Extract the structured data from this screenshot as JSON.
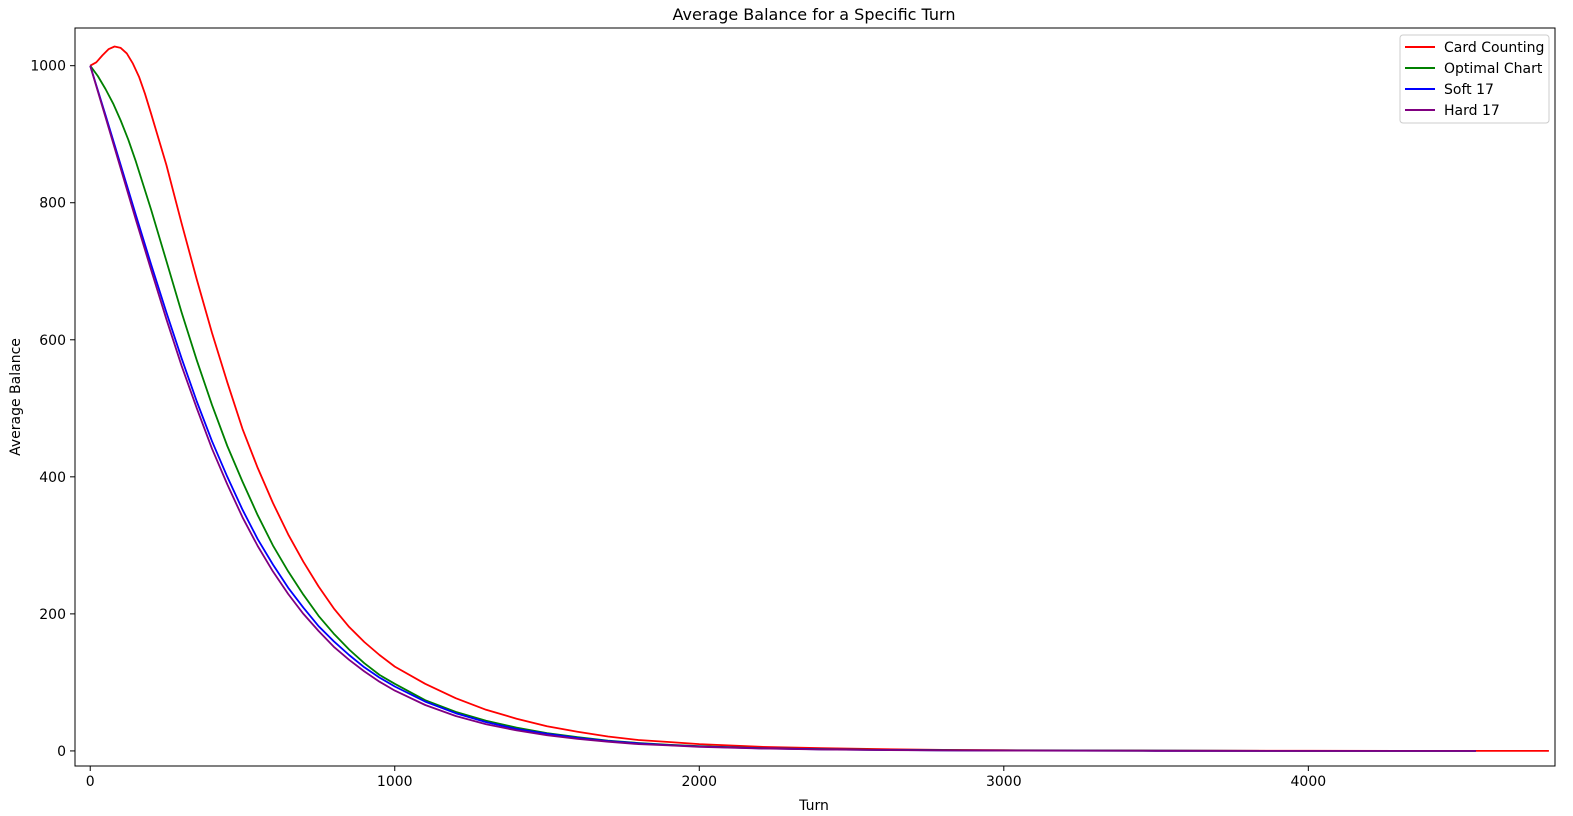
{
  "chart_data": {
    "type": "line",
    "title": "Average Balance for a Specific Turn",
    "xlabel": "Turn",
    "ylabel": "Average Balance",
    "xlim": [
      -50,
      4810
    ],
    "ylim": [
      -22,
      1055
    ],
    "xticks": [
      0,
      1000,
      2000,
      3000,
      4000
    ],
    "yticks": [
      0,
      200,
      400,
      600,
      800,
      1000
    ],
    "grid": false,
    "legend_position": "top-right",
    "series": [
      {
        "name": "Card Counting",
        "color": "#ff0000",
        "points": [
          [
            0,
            1000
          ],
          [
            20,
            1005
          ],
          [
            40,
            1015
          ],
          [
            60,
            1024
          ],
          [
            80,
            1028
          ],
          [
            100,
            1026
          ],
          [
            120,
            1018
          ],
          [
            140,
            1003
          ],
          [
            160,
            984
          ],
          [
            180,
            959
          ],
          [
            200,
            930
          ],
          [
            250,
            855
          ],
          [
            300,
            770
          ],
          [
            350,
            688
          ],
          [
            400,
            610
          ],
          [
            450,
            538
          ],
          [
            500,
            470
          ],
          [
            550,
            413
          ],
          [
            600,
            362
          ],
          [
            650,
            316
          ],
          [
            700,
            276
          ],
          [
            750,
            240
          ],
          [
            800,
            208
          ],
          [
            850,
            181
          ],
          [
            900,
            159
          ],
          [
            950,
            140
          ],
          [
            1000,
            123
          ],
          [
            1100,
            98
          ],
          [
            1200,
            77
          ],
          [
            1300,
            60
          ],
          [
            1400,
            47
          ],
          [
            1500,
            36
          ],
          [
            1600,
            28
          ],
          [
            1700,
            21
          ],
          [
            1800,
            16
          ],
          [
            1900,
            13
          ],
          [
            2000,
            10
          ],
          [
            2200,
            6
          ],
          [
            2400,
            4
          ],
          [
            2600,
            2.5
          ],
          [
            2800,
            1.5
          ],
          [
            3000,
            1
          ],
          [
            3500,
            0.5
          ],
          [
            4000,
            0.2
          ],
          [
            4500,
            0.1
          ],
          [
            4790,
            0
          ]
        ]
      },
      {
        "name": "Optimal Chart",
        "color": "#008000",
        "points": [
          [
            0,
            1000
          ],
          [
            25,
            985
          ],
          [
            50,
            966
          ],
          [
            75,
            945
          ],
          [
            100,
            920
          ],
          [
            125,
            892
          ],
          [
            150,
            860
          ],
          [
            175,
            825
          ],
          [
            200,
            790
          ],
          [
            250,
            715
          ],
          [
            300,
            640
          ],
          [
            350,
            570
          ],
          [
            400,
            505
          ],
          [
            450,
            445
          ],
          [
            500,
            393
          ],
          [
            550,
            344
          ],
          [
            600,
            300
          ],
          [
            650,
            262
          ],
          [
            700,
            228
          ],
          [
            750,
            197
          ],
          [
            800,
            171
          ],
          [
            850,
            148
          ],
          [
            900,
            128
          ],
          [
            950,
            111
          ],
          [
            1000,
            98
          ],
          [
            1100,
            74
          ],
          [
            1200,
            57
          ],
          [
            1300,
            44
          ],
          [
            1400,
            34
          ],
          [
            1500,
            26
          ],
          [
            1600,
            20
          ],
          [
            1700,
            15
          ],
          [
            1800,
            11.5
          ],
          [
            1900,
            9
          ],
          [
            2000,
            7
          ],
          [
            2200,
            4
          ],
          [
            2400,
            2.5
          ],
          [
            2600,
            1.5
          ],
          [
            2800,
            1
          ],
          [
            3000,
            0.6
          ],
          [
            3500,
            0.3
          ],
          [
            4000,
            0.1
          ],
          [
            4550,
            0
          ]
        ]
      },
      {
        "name": "Soft 17",
        "color": "#0000ff",
        "points": [
          [
            0,
            1000
          ],
          [
            50,
            928
          ],
          [
            100,
            855
          ],
          [
            150,
            782
          ],
          [
            200,
            710
          ],
          [
            250,
            640
          ],
          [
            300,
            573
          ],
          [
            350,
            510
          ],
          [
            400,
            452
          ],
          [
            450,
            400
          ],
          [
            500,
            352
          ],
          [
            550,
            309
          ],
          [
            600,
            272
          ],
          [
            650,
            238
          ],
          [
            700,
            209
          ],
          [
            750,
            182
          ],
          [
            800,
            160
          ],
          [
            850,
            140
          ],
          [
            900,
            122
          ],
          [
            950,
            107
          ],
          [
            1000,
            94
          ],
          [
            1100,
            72
          ],
          [
            1200,
            55
          ],
          [
            1300,
            42
          ],
          [
            1400,
            32
          ],
          [
            1500,
            25
          ],
          [
            1600,
            19
          ],
          [
            1700,
            14.5
          ],
          [
            1800,
            11
          ],
          [
            1900,
            8.5
          ],
          [
            2000,
            6.5
          ],
          [
            2200,
            3.8
          ],
          [
            2400,
            2.3
          ],
          [
            2600,
            1.4
          ],
          [
            2800,
            0.9
          ],
          [
            3000,
            0.5
          ],
          [
            3500,
            0.2
          ],
          [
            4000,
            0.1
          ],
          [
            4550,
            0
          ]
        ]
      },
      {
        "name": "Hard 17",
        "color": "#800080",
        "points": [
          [
            0,
            1000
          ],
          [
            50,
            925
          ],
          [
            100,
            850
          ],
          [
            150,
            775
          ],
          [
            200,
            702
          ],
          [
            250,
            630
          ],
          [
            300,
            562
          ],
          [
            350,
            500
          ],
          [
            400,
            441
          ],
          [
            450,
            389
          ],
          [
            500,
            341
          ],
          [
            550,
            299
          ],
          [
            600,
            262
          ],
          [
            650,
            229
          ],
          [
            700,
            200
          ],
          [
            750,
            175
          ],
          [
            800,
            152
          ],
          [
            850,
            133
          ],
          [
            900,
            116
          ],
          [
            950,
            101
          ],
          [
            1000,
            88
          ],
          [
            1100,
            67
          ],
          [
            1200,
            51
          ],
          [
            1300,
            39
          ],
          [
            1400,
            30
          ],
          [
            1500,
            23
          ],
          [
            1600,
            17.5
          ],
          [
            1700,
            13.5
          ],
          [
            1800,
            10
          ],
          [
            1900,
            8
          ],
          [
            2000,
            6
          ],
          [
            2200,
            3.5
          ],
          [
            2400,
            2.1
          ],
          [
            2600,
            1.3
          ],
          [
            2800,
            0.8
          ],
          [
            3000,
            0.5
          ],
          [
            3500,
            0.2
          ],
          [
            4000,
            0.1
          ],
          [
            4550,
            0
          ]
        ]
      }
    ]
  }
}
